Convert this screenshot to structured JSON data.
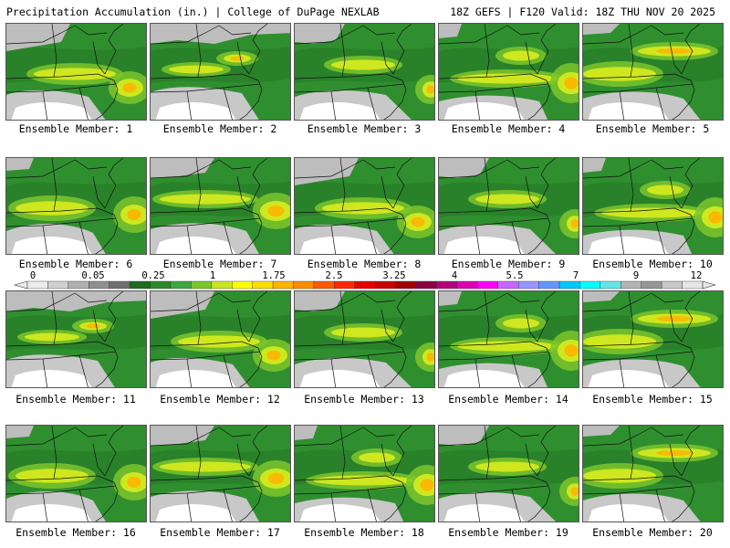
{
  "header": {
    "left": "Precipitation Accumulation (in.) | College of DuPage NEXLAB",
    "right": "18Z GEFS | F120 Valid: 18Z THU NOV 20 2025"
  },
  "panels": [
    {
      "caption": "Ensemble Member: 1",
      "variant": 0
    },
    {
      "caption": "Ensemble Member: 2",
      "variant": 1
    },
    {
      "caption": "Ensemble Member: 3",
      "variant": 2
    },
    {
      "caption": "Ensemble Member: 4",
      "variant": 3
    },
    {
      "caption": "Ensemble Member: 5",
      "variant": 4
    },
    {
      "caption": "Ensemble Member: 6",
      "variant": 5
    },
    {
      "caption": "Ensemble Member: 7",
      "variant": 6
    },
    {
      "caption": "Ensemble Member: 8",
      "variant": 0
    },
    {
      "caption": "Ensemble Member: 9",
      "variant": 2
    },
    {
      "caption": "Ensemble Member: 10",
      "variant": 3
    },
    {
      "caption": "Ensemble Member: 11",
      "variant": 1
    },
    {
      "caption": "Ensemble Member: 12",
      "variant": 0
    },
    {
      "caption": "Ensemble Member: 13",
      "variant": 2
    },
    {
      "caption": "Ensemble Member: 14",
      "variant": 3
    },
    {
      "caption": "Ensemble Member: 15",
      "variant": 4
    },
    {
      "caption": "Ensemble Member: 16",
      "variant": 5
    },
    {
      "caption": "Ensemble Member: 17",
      "variant": 6
    },
    {
      "caption": "Ensemble Member: 18",
      "variant": 3
    },
    {
      "caption": "Ensemble Member: 19",
      "variant": 2
    },
    {
      "caption": "Ensemble Member: 20",
      "variant": 4
    }
  ],
  "colorbar": {
    "labels": [
      "0",
      "0.05",
      "0.25",
      "1",
      "1.75",
      "2.5",
      "3.25",
      "4",
      "5.5",
      "7",
      "9",
      "12"
    ],
    "colors": [
      "#ececec",
      "#d0d0d0",
      "#b0b0b0",
      "#8f8f8f",
      "#707070",
      "#1e6b1e",
      "#2c8a2c",
      "#3ea83e",
      "#7cc62c",
      "#c8e61e",
      "#ffff00",
      "#ffdc00",
      "#ffb400",
      "#ff8c00",
      "#ff5a00",
      "#ff2800",
      "#e60000",
      "#c80000",
      "#a00000",
      "#8c0040",
      "#b4007a",
      "#dc00b4",
      "#ff00ff",
      "#c864ff",
      "#9696ff",
      "#6496ff",
      "#00c8ff",
      "#00ffff",
      "#64e6e6",
      "#b4b4b4",
      "#969696",
      "#c8c8c8",
      "#e6e6e6"
    ]
  }
}
